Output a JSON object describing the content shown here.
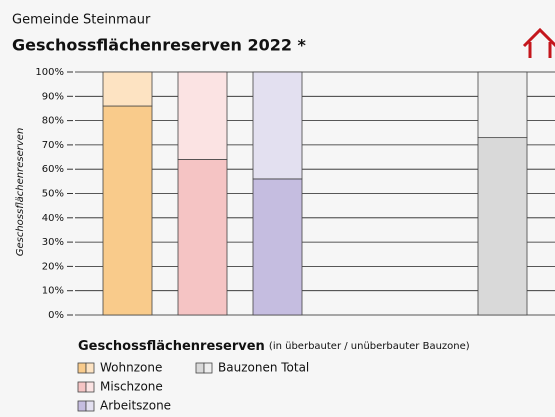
{
  "chart_data": {
    "type": "stacked_bar",
    "subtitle": "Gemeinde Steinmaur",
    "title": "Geschossflächenreserven 2022 *",
    "y_label": "Geschossflächenreserven",
    "legend_title": "Geschossflächenreserven",
    "legend_note": "(in überbauter / unüberbauter Bauzone)",
    "categories": [
      null,
      null,
      null,
      null,
      null,
      null
    ],
    "series": [
      {
        "name": "Wohnzone",
        "color": "#f9cb8b",
        "upper_color": "#fde3c2",
        "values": [
          86,
          null,
          null,
          null,
          null,
          null
        ],
        "upper_values": [
          14,
          null,
          null,
          null,
          null,
          null
        ]
      },
      {
        "name": "Mischzone",
        "color": "#f5c4c4",
        "upper_color": "#fbe3e3",
        "values": [
          null,
          64,
          null,
          null,
          null,
          null
        ],
        "upper_values": [
          null,
          36,
          null,
          null,
          null,
          null
        ]
      },
      {
        "name": "Arbeitszone",
        "color": "#c5bde0",
        "upper_color": "#e3e0f0",
        "values": [
          null,
          null,
          56,
          null,
          null,
          null
        ],
        "upper_values": [
          null,
          null,
          44,
          null,
          null,
          null
        ]
      },
      {
        "name": "Bauzonen Total",
        "color": "#d9d9d9",
        "upper_color": "#eeeeee",
        "values": [
          null,
          null,
          null,
          null,
          null,
          73
        ],
        "upper_values": [
          null,
          null,
          null,
          null,
          null,
          27
        ]
      }
    ],
    "ylim": [
      0,
      100
    ],
    "yticks": [
      {
        "value": 0,
        "label": "0%"
      },
      {
        "value": 10,
        "label": "10%"
      },
      {
        "value": 20,
        "label": "20%"
      },
      {
        "value": 30,
        "label": "30%"
      },
      {
        "value": 40,
        "label": "40%"
      },
      {
        "value": 50,
        "label": "50%"
      },
      {
        "value": 60,
        "label": "60%"
      },
      {
        "value": 70,
        "label": "70%"
      },
      {
        "value": 80,
        "label": "80%"
      },
      {
        "value": 90,
        "label": "90%"
      },
      {
        "value": 100,
        "label": "100%"
      }
    ],
    "grid": true
  }
}
